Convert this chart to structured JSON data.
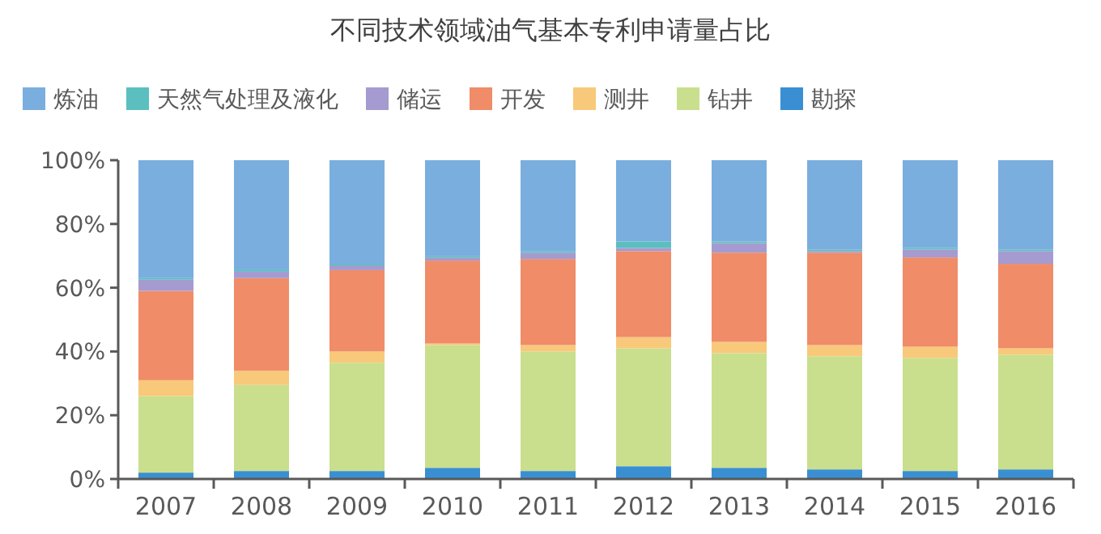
{
  "chart_data": {
    "type": "bar",
    "title": "不同技术领域油气基本专利申请量占比",
    "stacked": true,
    "legend": "top",
    "grid": false,
    "categories": [
      "2007",
      "2008",
      "2009",
      "2010",
      "2011",
      "2012",
      "2013",
      "2014",
      "2015",
      "2016"
    ],
    "ylim": [
      0,
      100
    ],
    "yticks": [
      {
        "value": 0,
        "label": "0%"
      },
      {
        "value": 20,
        "label": "20%"
      },
      {
        "value": 40,
        "label": "40%"
      },
      {
        "value": 60,
        "label": "60%"
      },
      {
        "value": 80,
        "label": "80%"
      },
      {
        "value": 100,
        "label": "100%"
      }
    ],
    "series": [
      {
        "name": "勘探",
        "color": "#3a8fd3",
        "values": [
          2,
          2.5,
          2.5,
          3.5,
          2.5,
          4,
          3.5,
          3,
          2.5,
          3
        ]
      },
      {
        "name": "钻井",
        "color": "#c9df8e",
        "values": [
          24,
          27,
          34,
          38.5,
          37.5,
          37,
          36,
          35.5,
          35.5,
          36
        ]
      },
      {
        "name": "测井",
        "color": "#f8c97a",
        "values": [
          5,
          4.5,
          3.5,
          0.5,
          2,
          3.5,
          3.5,
          3.5,
          3.5,
          2
        ]
      },
      {
        "name": "开发",
        "color": "#f08c68",
        "values": [
          28,
          29,
          25.5,
          26,
          27,
          27,
          28,
          29,
          28,
          26.5
        ]
      },
      {
        "name": "储运",
        "color": "#a59bd0",
        "values": [
          3.5,
          2,
          1.5,
          1,
          2,
          1,
          3,
          0.5,
          2.5,
          4
        ]
      },
      {
        "name": "天然气处理及液化",
        "color": "#5bbfc0",
        "values": [
          0.5,
          0.5,
          0.5,
          0.5,
          0.5,
          2,
          0.5,
          0.5,
          0.5,
          0.5
        ]
      },
      {
        "name": "炼油",
        "color": "#7aaede",
        "values": [
          37,
          34.5,
          32.5,
          30,
          28.5,
          25.5,
          25.5,
          28,
          27.5,
          28
        ]
      }
    ]
  }
}
